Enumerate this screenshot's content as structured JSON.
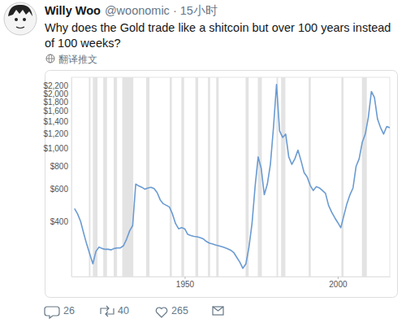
{
  "tweet": {
    "author": "Willy Woo",
    "byline": "@woonomic · 15小时",
    "text": "Why does the Gold trade like a shitcoin but over 100 years instead of 100 weeks?",
    "translate": "翻译推文",
    "replies": 26,
    "retweets": 40,
    "likes": 265
  },
  "chart_data": {
    "type": "line",
    "log": "y",
    "grid": false,
    "color": "#6a9bd2",
    "xlim": [
      1913,
      2017
    ],
    "ylim": [
      200,
      2450
    ],
    "xticks": [
      1950,
      2000
    ],
    "yticks": [
      {
        "value": 400,
        "label": "$400"
      },
      {
        "value": 600,
        "label": "$600"
      },
      {
        "value": 800,
        "label": "$800"
      },
      {
        "value": 1000,
        "label": "$1,000"
      },
      {
        "value": 1200,
        "label": "$1,200"
      },
      {
        "value": 1400,
        "label": "$1,400"
      },
      {
        "value": 1600,
        "label": "$1,600"
      },
      {
        "value": 1800,
        "label": "$1,800"
      },
      {
        "value": 2000,
        "label": "$2,000"
      },
      {
        "value": 2200,
        "label": "$2,200"
      }
    ],
    "shaded_periods": [
      [
        1918.7,
        1919.2
      ],
      [
        1920,
        1921.5
      ],
      [
        1923.4,
        1924.6
      ],
      [
        1926.8,
        1927.9
      ],
      [
        1929.6,
        1933.2
      ],
      [
        1937.4,
        1938.5
      ],
      [
        1945.1,
        1945.8
      ],
      [
        1948.9,
        1949.8
      ],
      [
        1953.5,
        1954.4
      ],
      [
        1957.6,
        1958.3
      ],
      [
        1960.3,
        1961.1
      ],
      [
        1969.9,
        1970.9
      ],
      [
        1973.9,
        1975.2
      ],
      [
        1980,
        1980.5
      ],
      [
        1981.5,
        1982.9
      ],
      [
        1990.5,
        1991.2
      ],
      [
        2001.2,
        2001.9
      ],
      [
        2007.9,
        2009.5
      ]
    ],
    "x": [
      1914,
      1915,
      1916,
      1917,
      1918,
      1919,
      1920,
      1921,
      1922,
      1923,
      1924,
      1925,
      1926,
      1927,
      1928,
      1929,
      1930,
      1931,
      1932,
      1933,
      1934,
      1935,
      1936,
      1937,
      1938,
      1939,
      1940,
      1941,
      1942,
      1943,
      1944,
      1945,
      1946,
      1947,
      1948,
      1949,
      1950,
      1951,
      1952,
      1953,
      1954,
      1955,
      1956,
      1957,
      1958,
      1959,
      1960,
      1961,
      1962,
      1963,
      1964,
      1965,
      1966,
      1967,
      1968,
      1969,
      1970,
      1971,
      1972,
      1973,
      1974,
      1975,
      1976,
      1977,
      1978,
      1979,
      1980,
      1981,
      1982,
      1983,
      1984,
      1985,
      1986,
      1987,
      1988,
      1989,
      1990,
      1991,
      1992,
      1993,
      1994,
      1995,
      1996,
      1997,
      1998,
      1999,
      2000,
      2001,
      2002,
      2003,
      2004,
      2005,
      2006,
      2007,
      2008,
      2009,
      2010,
      2011,
      2012,
      2013,
      2014,
      2015,
      2016,
      2017
    ],
    "values": [
      470,
      440,
      400,
      345,
      300,
      265,
      235,
      275,
      290,
      285,
      282,
      282,
      280,
      285,
      287,
      287,
      295,
      320,
      355,
      380,
      640,
      625,
      615,
      600,
      610,
      615,
      605,
      575,
      525,
      500,
      490,
      480,
      440,
      390,
      365,
      370,
      365,
      340,
      335,
      332,
      330,
      327,
      322,
      312,
      305,
      302,
      298,
      295,
      292,
      288,
      284,
      279,
      271,
      255,
      240,
      222,
      235,
      290,
      390,
      620,
      900,
      780,
      560,
      640,
      820,
      1300,
      2240,
      1250,
      1150,
      1200,
      900,
      820,
      880,
      980,
      860,
      740,
      700,
      630,
      590,
      620,
      610,
      590,
      570,
      490,
      450,
      420,
      395,
      370,
      430,
      500,
      560,
      610,
      800,
      880,
      1080,
      1200,
      1480,
      2050,
      1900,
      1450,
      1300,
      1200,
      1320,
      1300
    ]
  }
}
